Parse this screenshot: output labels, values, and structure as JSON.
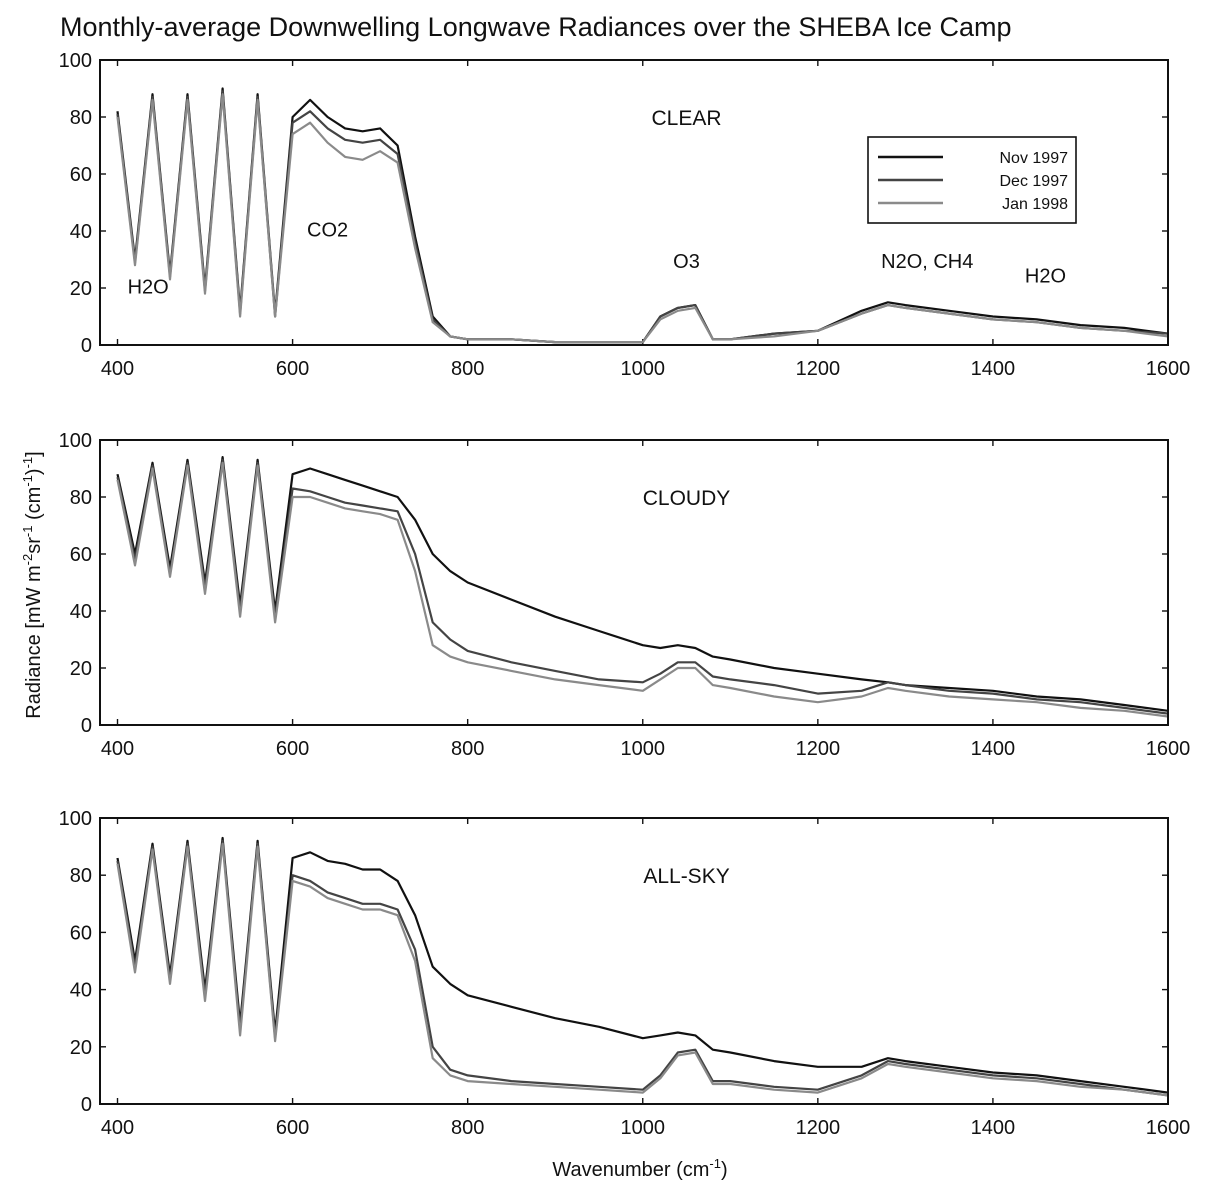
{
  "figure": {
    "title": "Monthly-average Downwelling Longwave Radiances over the SHEBA Ice Camp",
    "xlabel_text": "Wavenumber (cm",
    "xlabel_sup": "-1",
    "xlabel_close": ")",
    "ylabel_text": "Radiance [mW m",
    "ylabel_sup1": "-2",
    "ylabel_mid": "sr",
    "ylabel_sup2": "-1",
    "ylabel_unit": " (cm",
    "ylabel_sup3": "-1",
    "ylabel_close": ")",
    "ylabel_sup4": "-1",
    "ylabel_close2": "]"
  },
  "chart_data": [
    {
      "type": "line",
      "title": "CLEAR",
      "xlim": [
        380,
        1600
      ],
      "ylim": [
        0,
        100
      ],
      "xticks": [
        400,
        600,
        800,
        1000,
        1200,
        1400,
        1600
      ],
      "yticks": [
        0,
        20,
        40,
        60,
        80,
        100
      ],
      "legend": {
        "placement": "top-right",
        "entries": [
          "Nov 1997",
          "Dec 1997",
          "Jan 1998"
        ]
      },
      "annotations": [
        {
          "text": "H2O",
          "x": 435,
          "y": 18
        },
        {
          "text": "CO2",
          "x": 640,
          "y": 38
        },
        {
          "text": "O3",
          "x": 1050,
          "y": 27
        },
        {
          "text": "N2O, CH4",
          "x": 1325,
          "y": 27
        },
        {
          "text": "H2O",
          "x": 1460,
          "y": 22
        }
      ],
      "x": [
        400,
        420,
        440,
        460,
        480,
        500,
        520,
        540,
        560,
        580,
        600,
        620,
        640,
        660,
        680,
        700,
        720,
        740,
        760,
        780,
        800,
        850,
        900,
        950,
        1000,
        1020,
        1040,
        1060,
        1080,
        1100,
        1150,
        1200,
        1250,
        1280,
        1300,
        1350,
        1400,
        1450,
        1500,
        1550,
        1600
      ],
      "series": [
        {
          "name": "Nov 1997",
          "values": [
            82,
            30,
            88,
            25,
            88,
            20,
            90,
            12,
            88,
            11,
            80,
            86,
            80,
            76,
            75,
            76,
            70,
            38,
            10,
            3,
            2,
            2,
            1,
            1,
            1,
            10,
            13,
            14,
            2,
            2,
            4,
            5,
            12,
            15,
            14,
            12,
            10,
            9,
            7,
            6,
            4
          ]
        },
        {
          "name": "Dec 1997",
          "values": [
            81,
            29,
            87,
            24,
            87,
            19,
            89,
            11,
            87,
            10,
            78,
            82,
            76,
            72,
            71,
            72,
            67,
            36,
            9,
            3,
            2,
            2,
            1,
            1,
            1,
            10,
            13,
            14,
            2,
            2,
            4,
            5,
            11,
            14,
            13,
            11,
            9,
            8,
            6,
            5,
            4
          ]
        },
        {
          "name": "Jan 1998",
          "values": [
            80,
            28,
            86,
            23,
            86,
            18,
            88,
            10,
            86,
            10,
            74,
            78,
            71,
            66,
            65,
            68,
            64,
            34,
            8,
            3,
            2,
            2,
            1,
            1,
            1,
            9,
            12,
            13,
            2,
            2,
            3,
            5,
            11,
            14,
            13,
            11,
            9,
            8,
            6,
            5,
            3
          ]
        }
      ]
    },
    {
      "type": "line",
      "title": "CLOUDY",
      "xlim": [
        380,
        1600
      ],
      "ylim": [
        0,
        100
      ],
      "xticks": [
        400,
        600,
        800,
        1000,
        1200,
        1400,
        1600
      ],
      "yticks": [
        0,
        20,
        40,
        60,
        80,
        100
      ],
      "x": [
        400,
        420,
        440,
        460,
        480,
        500,
        520,
        540,
        560,
        580,
        600,
        620,
        640,
        660,
        680,
        700,
        720,
        740,
        760,
        780,
        800,
        850,
        900,
        950,
        1000,
        1020,
        1040,
        1060,
        1080,
        1100,
        1150,
        1200,
        1250,
        1280,
        1300,
        1350,
        1400,
        1450,
        1500,
        1550,
        1600
      ],
      "series": [
        {
          "name": "Nov 1997",
          "values": [
            88,
            60,
            92,
            55,
            93,
            50,
            94,
            42,
            93,
            40,
            88,
            90,
            88,
            86,
            84,
            82,
            80,
            72,
            60,
            54,
            50,
            44,
            38,
            33,
            28,
            27,
            28,
            27,
            24,
            23,
            20,
            18,
            16,
            15,
            14,
            13,
            12,
            10,
            9,
            7,
            5
          ]
        },
        {
          "name": "Dec 1997",
          "values": [
            87,
            58,
            91,
            53,
            92,
            48,
            93,
            40,
            92,
            38,
            83,
            82,
            80,
            78,
            77,
            76,
            75,
            60,
            36,
            30,
            26,
            22,
            19,
            16,
            15,
            18,
            22,
            22,
            17,
            16,
            14,
            11,
            12,
            15,
            14,
            12,
            11,
            9,
            8,
            6,
            4
          ]
        },
        {
          "name": "Jan 1998",
          "values": [
            86,
            56,
            90,
            52,
            91,
            46,
            92,
            38,
            91,
            36,
            80,
            80,
            78,
            76,
            75,
            74,
            72,
            54,
            28,
            24,
            22,
            19,
            16,
            14,
            12,
            16,
            20,
            20,
            14,
            13,
            10,
            8,
            10,
            13,
            12,
            10,
            9,
            8,
            6,
            5,
            3
          ]
        }
      ]
    },
    {
      "type": "line",
      "title": "ALL-SKY",
      "xlim": [
        380,
        1600
      ],
      "ylim": [
        0,
        100
      ],
      "xticks": [
        400,
        600,
        800,
        1000,
        1200,
        1400,
        1600
      ],
      "yticks": [
        0,
        20,
        40,
        60,
        80,
        100
      ],
      "x": [
        400,
        420,
        440,
        460,
        480,
        500,
        520,
        540,
        560,
        580,
        600,
        620,
        640,
        660,
        680,
        700,
        720,
        740,
        760,
        780,
        800,
        850,
        900,
        950,
        1000,
        1020,
        1040,
        1060,
        1080,
        1100,
        1150,
        1200,
        1250,
        1280,
        1300,
        1350,
        1400,
        1450,
        1500,
        1550,
        1600
      ],
      "series": [
        {
          "name": "Nov 1997",
          "values": [
            86,
            50,
            91,
            45,
            92,
            40,
            93,
            28,
            92,
            25,
            86,
            88,
            85,
            84,
            82,
            82,
            78,
            66,
            48,
            42,
            38,
            34,
            30,
            27,
            23,
            24,
            25,
            24,
            19,
            18,
            15,
            13,
            13,
            16,
            15,
            13,
            11,
            10,
            8,
            6,
            4
          ]
        },
        {
          "name": "Dec 1997",
          "values": [
            85,
            48,
            90,
            43,
            91,
            38,
            92,
            26,
            91,
            23,
            80,
            78,
            74,
            72,
            70,
            70,
            68,
            54,
            20,
            12,
            10,
            8,
            7,
            6,
            5,
            10,
            18,
            19,
            8,
            8,
            6,
            5,
            10,
            15,
            14,
            12,
            10,
            9,
            7,
            5,
            3
          ]
        },
        {
          "name": "Jan 1998",
          "values": [
            84,
            46,
            89,
            42,
            90,
            36,
            91,
            24,
            90,
            22,
            78,
            76,
            72,
            70,
            68,
            68,
            66,
            50,
            16,
            10,
            8,
            7,
            6,
            5,
            4,
            9,
            17,
            18,
            7,
            7,
            5,
            4,
            9,
            14,
            13,
            11,
            9,
            8,
            6,
            5,
            3
          ]
        }
      ]
    }
  ]
}
